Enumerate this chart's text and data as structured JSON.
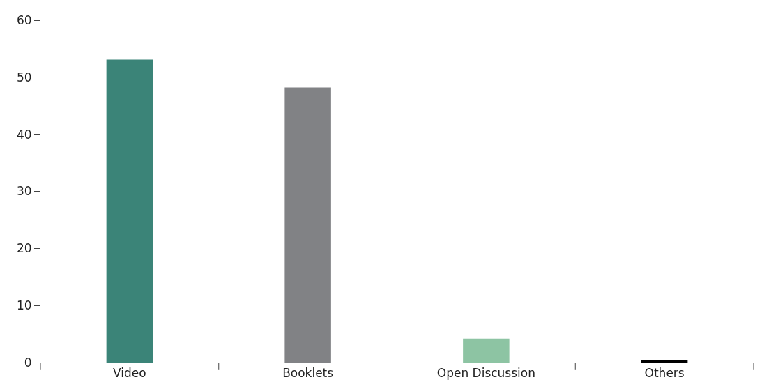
{
  "chart_data": {
    "type": "bar",
    "categories": [
      "Video",
      "Booklets",
      "Open Discussion",
      "Others"
    ],
    "values": [
      53.1,
      48.2,
      4.2,
      0.4
    ],
    "colors": [
      "#3b8478",
      "#818285",
      "#8dc4a3",
      "#000000"
    ],
    "ylim": [
      0,
      60
    ],
    "yticks": [
      0,
      10,
      20,
      30,
      40,
      50,
      60
    ]
  }
}
